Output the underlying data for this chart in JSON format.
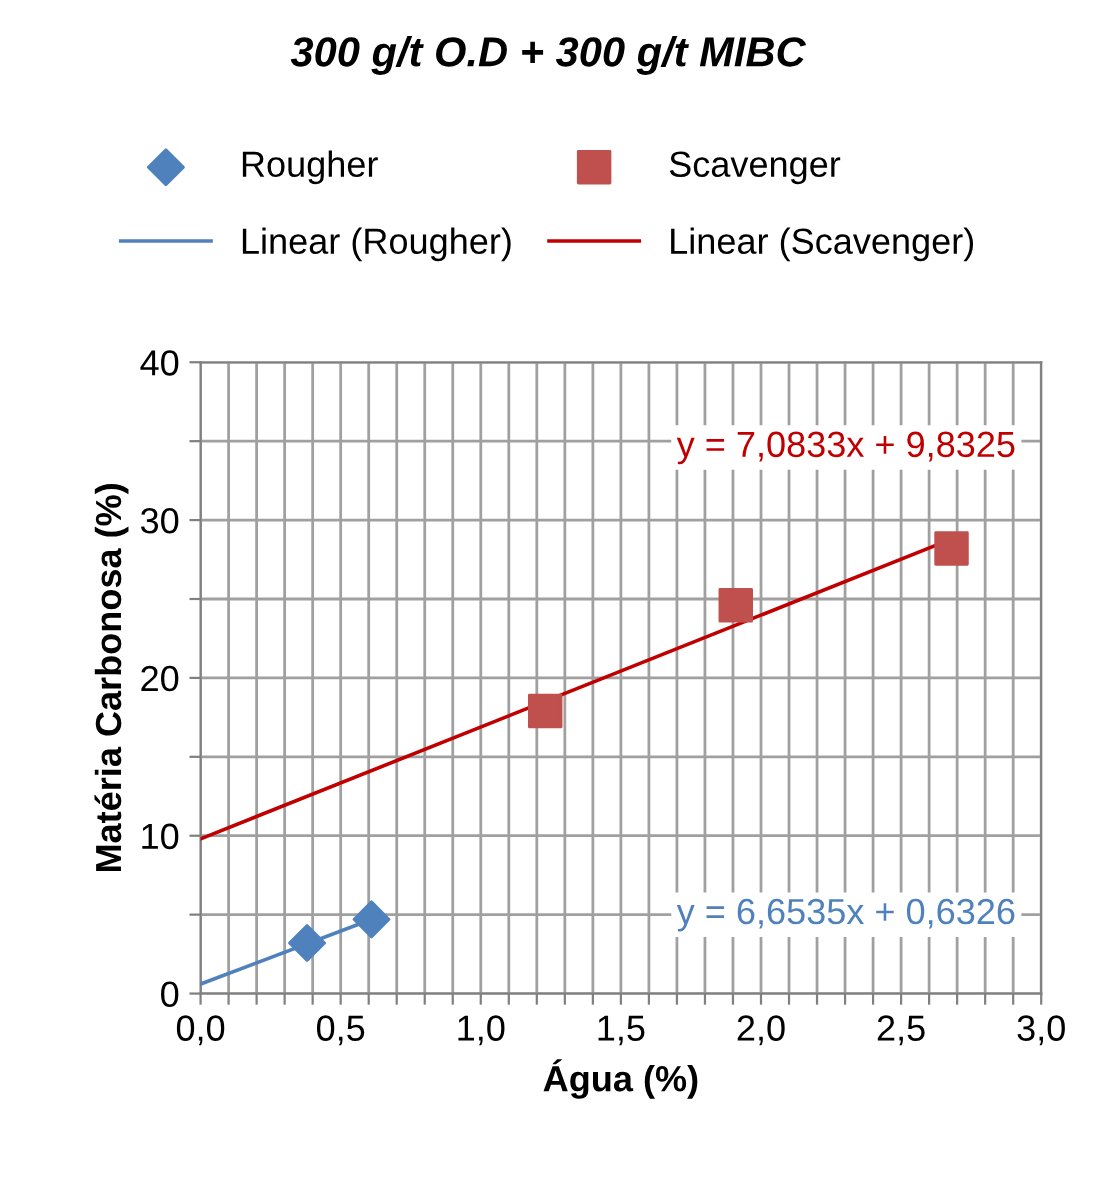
{
  "chart_data": {
    "type": "scatter",
    "title": "300 g/t O.D + 300 g/t MIBC",
    "xlabel": "Água (%)",
    "ylabel": "Matéria Carbonosa (%)",
    "series": [
      {
        "name": "Rougher",
        "marker": "diamond",
        "color": "#4f81bd",
        "x": [
          0.38,
          0.61
        ],
        "values": [
          3.2,
          4.7
        ]
      },
      {
        "name": "Scavenger",
        "marker": "square",
        "color": "#c0504d",
        "x": [
          1.23,
          1.91,
          2.68
        ],
        "values": [
          17.9,
          24.6,
          28.2
        ]
      },
      {
        "name": "Linear (Rougher)",
        "type": "line",
        "marker": "none",
        "color": "#4f81bd",
        "x": [
          0,
          0.61
        ],
        "values": [
          0.6,
          4.7
        ]
      },
      {
        "name": "Linear (Scavenger)",
        "type": "line",
        "marker": "none",
        "color": "#c00000",
        "x": [
          0,
          2.68
        ],
        "values": [
          9.8,
          28.8
        ]
      }
    ],
    "annotations": [
      "y = 6,6535x + 0,6326",
      "y = 7,0833x + 9,8325"
    ],
    "xlim": [
      0,
      3
    ],
    "ylim": [
      0,
      40
    ],
    "xticks": [
      {
        "value": 0,
        "label": "0,0"
      },
      {
        "value": 0.1,
        "label": null
      },
      {
        "value": 0.2,
        "label": null
      },
      {
        "value": 0.3,
        "label": null
      },
      {
        "value": 0.4,
        "label": null
      },
      {
        "value": 0.5,
        "label": "0,5"
      },
      {
        "value": 0.6,
        "label": null
      },
      {
        "value": 0.7,
        "label": null
      },
      {
        "value": 0.8,
        "label": null
      },
      {
        "value": 0.9,
        "label": null
      },
      {
        "value": 1,
        "label": "1,0"
      },
      {
        "value": 1.1,
        "label": null
      },
      {
        "value": 1.2,
        "label": null
      },
      {
        "value": 1.3,
        "label": null
      },
      {
        "value": 1.4,
        "label": null
      },
      {
        "value": 1.5,
        "label": "1,5"
      },
      {
        "value": 1.6,
        "label": null
      },
      {
        "value": 1.7,
        "label": null
      },
      {
        "value": 1.8,
        "label": null
      },
      {
        "value": 1.9,
        "label": null
      },
      {
        "value": 2,
        "label": "2,0"
      },
      {
        "value": 2.1,
        "label": null
      },
      {
        "value": 2.2,
        "label": null
      },
      {
        "value": 2.3,
        "label": null
      },
      {
        "value": 2.4,
        "label": null
      },
      {
        "value": 2.5,
        "label": "2,5"
      },
      {
        "value": 2.6,
        "label": null
      },
      {
        "value": 2.7,
        "label": null
      },
      {
        "value": 2.8,
        "label": null
      },
      {
        "value": 2.9,
        "label": null
      },
      {
        "value": 3,
        "label": "3,0"
      }
    ],
    "yticks": [
      0,
      {
        "value": 5,
        "label": null
      },
      10,
      {
        "value": 15,
        "label": null
      },
      20,
      {
        "value": 25,
        "label": null
      },
      30,
      {
        "value": 35,
        "label": null
      },
      40
    ],
    "grid": true,
    "legend": "top"
  }
}
